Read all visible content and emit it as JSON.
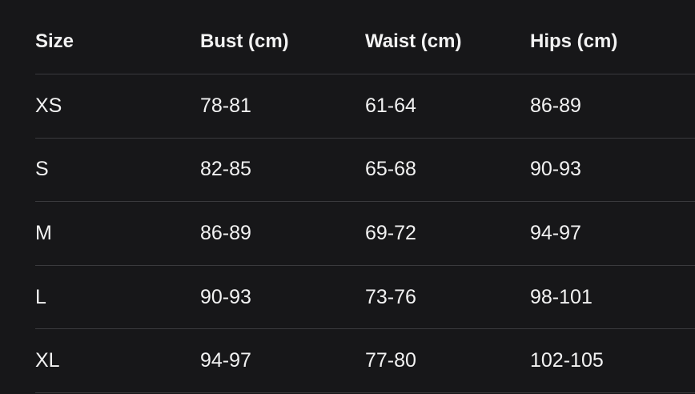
{
  "table": {
    "header": [
      "Size",
      "Bust (cm)",
      "Waist (cm)",
      "Hips (cm)"
    ],
    "rows": [
      [
        "XS",
        "78-81",
        "61-64",
        "86-89"
      ],
      [
        "S",
        "82-85",
        "65-68",
        "90-93"
      ],
      [
        "M",
        "86-89",
        "69-72",
        "94-97"
      ],
      [
        "L",
        "90-93",
        "73-76",
        "98-101"
      ],
      [
        "XL",
        "94-97",
        "77-80",
        "102-105"
      ]
    ]
  }
}
